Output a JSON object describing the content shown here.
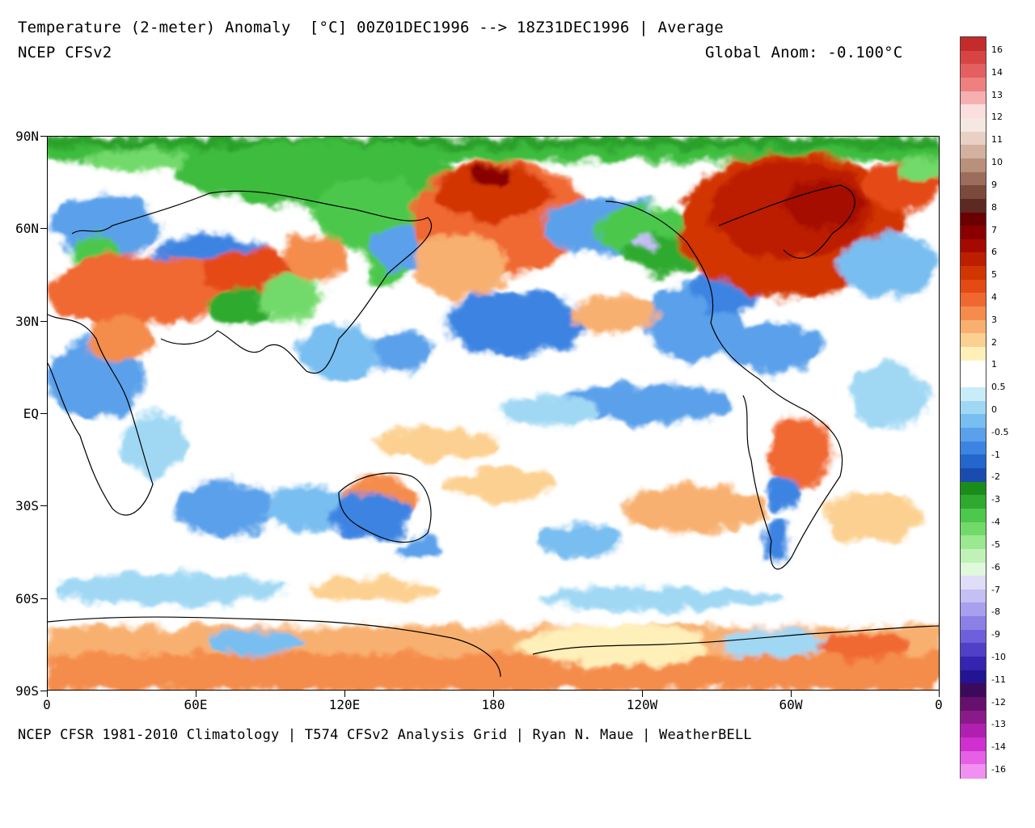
{
  "header": {
    "title": "Temperature (2-meter) Anomaly  [°C] 00Z01DEC1996 --> 18Z31DEC1996 | Average",
    "model": "NCEP CFSv2",
    "global_anom": "Global Anom: -0.100°C"
  },
  "footer": {
    "credits": "NCEP CFSR 1981-2010 Climatology | T574 CFSv2 Analysis Grid | Ryan N. Maue | WeatherBELL"
  },
  "axes": {
    "lat_labels": [
      "90N",
      "60N",
      "30N",
      "EQ",
      "30S",
      "60S",
      "90S"
    ],
    "lon_labels": [
      "0",
      "60E",
      "120E",
      "180",
      "120W",
      "60W",
      "0"
    ]
  },
  "legend": {
    "labels": [
      "16",
      "14",
      "13",
      "12",
      "11",
      "10",
      "9",
      "8",
      "7",
      "6",
      "5",
      "4",
      "3",
      "2",
      "1",
      "0.5",
      "0",
      "-0.5",
      "-1",
      "-2",
      "-3",
      "-4",
      "-5",
      "-6",
      "-7",
      "-8",
      "-9",
      "-10",
      "-11",
      "-12",
      "-13",
      "-14",
      "-16"
    ],
    "colors": [
      "#c42b2b",
      "#d84444",
      "#e46060",
      "#ee8080",
      "#f6b0b0",
      "#fbdede",
      "#f4e8e0",
      "#e8d0c4",
      "#d4b0a0",
      "#b8907c",
      "#9c6c5c",
      "#7c4a3c",
      "#5c2a22",
      "#6a0000",
      "#8a0000",
      "#a40a00",
      "#bc1e00",
      "#d23600",
      "#e44a14",
      "#f06830",
      "#f48c4c",
      "#f8b070",
      "#fcd090",
      "#fef0b8",
      "#ffffff",
      "#ffffff",
      "#c8ecf8",
      "#a0d8f4",
      "#78bef0",
      "#5aa0ea",
      "#3c84e2",
      "#2466cc",
      "#1a4cb0",
      "#1a8c1a",
      "#2eaa2e",
      "#4cc84c",
      "#72da6a",
      "#9ae890",
      "#c0f2b8",
      "#e0f8dc",
      "#e0ddf8",
      "#c4c0f4",
      "#a8a0ee",
      "#8c80e6",
      "#6e60da",
      "#5040c8",
      "#3424b0",
      "#221492",
      "#3c0a5c",
      "#64106c",
      "#8a1a8a",
      "#b020b0",
      "#d030d0",
      "#e660e6",
      "#f290f2"
    ]
  }
}
